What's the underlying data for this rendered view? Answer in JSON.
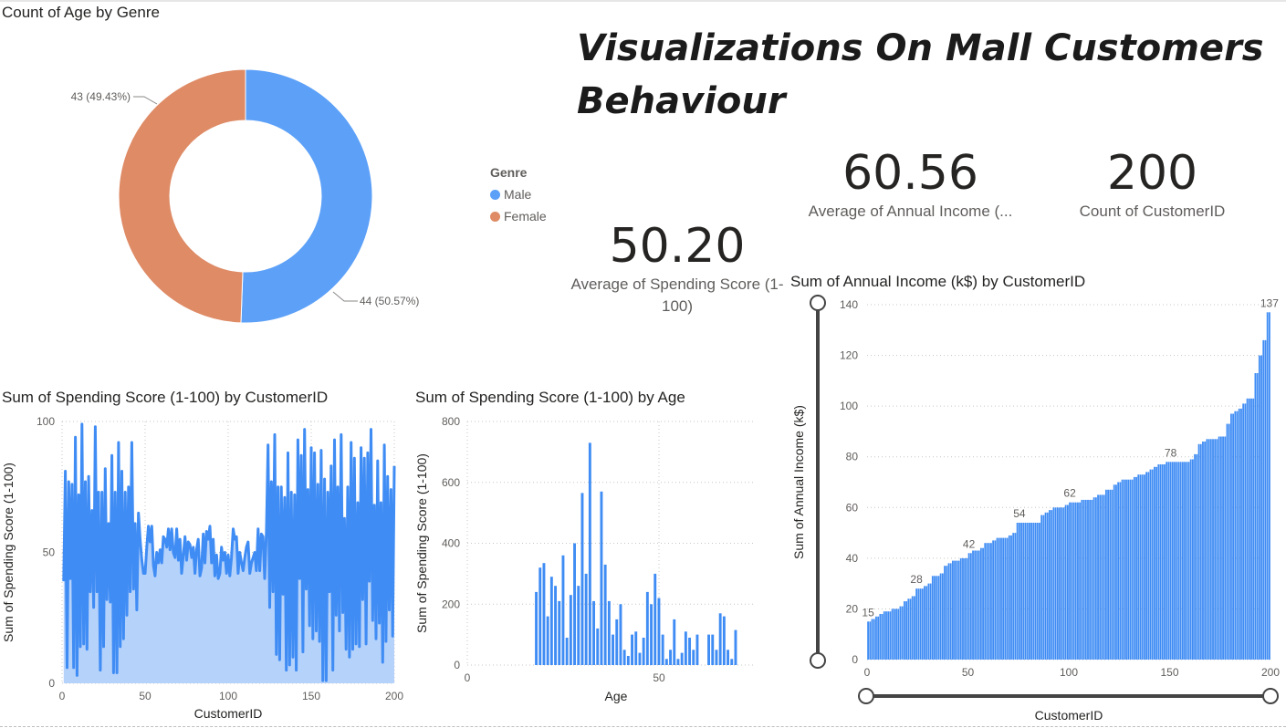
{
  "page_title": "Visualizations On Mall Customers Behaviour",
  "colors": {
    "male": "#5ca0f8",
    "female": "#de8b66",
    "bar": "#3f8cf4",
    "area": "#b5d2fb",
    "line": "#3f8cf4"
  },
  "cards": [
    {
      "value": "60.56",
      "label": "Average of Annual Income (..."
    },
    {
      "value": "200",
      "label": "Count of CustomerID"
    },
    {
      "value": "50.20",
      "label": "Average of Spending Score (1-100)"
    }
  ],
  "donut": {
    "title": "Count of Age by Genre",
    "legend_title": "Genre",
    "slices": [
      {
        "name": "Male",
        "value": 44,
        "label": "44 (50.57%)"
      },
      {
        "name": "Female",
        "value": 43,
        "label": "43 (49.43%)"
      }
    ]
  },
  "chart_data": [
    {
      "type": "area",
      "title": "Sum of Spending Score (1-100) by CustomerID",
      "xlabel": "CustomerID",
      "ylabel": "Sum of Spending Score (1-100)",
      "xlim": [
        0,
        200
      ],
      "ylim": [
        0,
        100
      ],
      "xticks": [
        "0",
        "50",
        "100",
        "150",
        "200"
      ],
      "yticks": [
        "0",
        "50",
        "100"
      ],
      "x": [
        1,
        2,
        3,
        4,
        5,
        6,
        7,
        8,
        9,
        10,
        11,
        12,
        13,
        14,
        15,
        16,
        17,
        18,
        19,
        20,
        21,
        22,
        23,
        24,
        25,
        26,
        27,
        28,
        29,
        30,
        31,
        32,
        33,
        34,
        35,
        36,
        37,
        38,
        39,
        40,
        41,
        42,
        43,
        44,
        45,
        46,
        47,
        48,
        49,
        50,
        51,
        52,
        53,
        54,
        55,
        56,
        57,
        58,
        59,
        60,
        61,
        62,
        63,
        64,
        65,
        66,
        67,
        68,
        69,
        70,
        71,
        72,
        73,
        74,
        75,
        76,
        77,
        78,
        79,
        80,
        81,
        82,
        83,
        84,
        85,
        86,
        87,
        88,
        89,
        90,
        91,
        92,
        93,
        94,
        95,
        96,
        97,
        98,
        99,
        100,
        101,
        102,
        103,
        104,
        105,
        106,
        107,
        108,
        109,
        110,
        111,
        112,
        113,
        114,
        115,
        116,
        117,
        118,
        119,
        120,
        121,
        122,
        123,
        124,
        125,
        126,
        127,
        128,
        129,
        130,
        131,
        132,
        133,
        134,
        135,
        136,
        137,
        138,
        139,
        140,
        141,
        142,
        143,
        144,
        145,
        146,
        147,
        148,
        149,
        150,
        151,
        152,
        153,
        154,
        155,
        156,
        157,
        158,
        159,
        160,
        161,
        162,
        163,
        164,
        165,
        166,
        167,
        168,
        169,
        170,
        171,
        172,
        173,
        174,
        175,
        176,
        177,
        178,
        179,
        180,
        181,
        182,
        183,
        184,
        185,
        186,
        187,
        188,
        189,
        190,
        191,
        192,
        193,
        194,
        195,
        196,
        197,
        198,
        199,
        200
      ],
      "values": [
        39,
        81,
        6,
        77,
        40,
        76,
        6,
        94,
        3,
        72,
        14,
        99,
        15,
        77,
        13,
        79,
        35,
        66,
        29,
        98,
        35,
        73,
        5,
        73,
        14,
        82,
        32,
        61,
        31,
        87,
        4,
        73,
        4,
        92,
        14,
        81,
        17,
        73,
        26,
        75,
        35,
        92,
        36,
        61,
        28,
        65,
        55,
        47,
        42,
        42,
        52,
        60,
        54,
        60,
        45,
        41,
        50,
        46,
        51,
        46,
        56,
        55,
        52,
        59,
        51,
        59,
        50,
        48,
        59,
        47,
        55,
        42,
        49,
        56,
        47,
        54,
        53,
        48,
        52,
        42,
        51,
        55,
        41,
        44,
        57,
        46,
        58,
        55,
        60,
        46,
        55,
        41,
        49,
        40,
        42,
        52,
        47,
        50,
        42,
        49,
        41,
        48,
        59,
        55,
        56,
        42,
        50,
        46,
        43,
        48,
        52,
        54,
        42,
        46,
        48,
        50,
        43,
        59,
        43,
        57,
        56,
        40,
        58,
        91,
        29,
        77,
        35,
        95,
        11,
        75,
        9,
        75,
        34,
        71,
        5,
        88,
        7,
        73,
        10,
        72,
        5,
        93,
        40,
        87,
        12,
        97,
        36,
        74,
        22,
        90,
        17,
        88,
        20,
        76,
        16,
        89,
        1,
        78,
        1,
        73,
        35,
        83,
        5,
        93,
        26,
        75,
        20,
        95,
        27,
        63,
        13,
        75,
        10,
        92,
        13,
        86,
        15,
        69,
        14,
        90,
        32,
        86,
        15,
        88,
        39,
        97,
        24,
        68,
        17,
        85,
        23,
        69,
        8,
        91,
        16,
        79,
        28,
        74,
        18,
        83
      ]
    },
    {
      "type": "bar",
      "title": "Sum of Spending Score (1-100) by Age",
      "xlabel": "Age",
      "ylabel": "Sum of Spending Score (1-100)",
      "xlim": [
        0,
        75
      ],
      "ylim": [
        0,
        800
      ],
      "xticks": [
        "0",
        "50"
      ],
      "yticks": [
        "0",
        "200",
        "400",
        "600",
        "800"
      ],
      "x": [
        18,
        19,
        20,
        21,
        22,
        23,
        24,
        25,
        26,
        27,
        28,
        29,
        30,
        31,
        32,
        33,
        34,
        35,
        36,
        37,
        38,
        39,
        40,
        41,
        42,
        43,
        44,
        45,
        46,
        47,
        48,
        49,
        50,
        51,
        52,
        53,
        54,
        55,
        56,
        57,
        58,
        59,
        60,
        63,
        64,
        65,
        66,
        67,
        68,
        69,
        70
      ],
      "values": [
        240,
        320,
        335,
        160,
        290,
        260,
        210,
        360,
        90,
        230,
        400,
        260,
        565,
        300,
        730,
        210,
        120,
        570,
        330,
        210,
        100,
        150,
        200,
        50,
        30,
        100,
        110,
        40,
        90,
        240,
        200,
        300,
        220,
        100,
        20,
        50,
        150,
        20,
        40,
        110,
        90,
        50,
        100,
        100,
        100,
        50,
        170,
        160,
        50,
        20,
        115
      ]
    },
    {
      "type": "bar",
      "title": "Sum of Annual Income (k$) by CustomerID",
      "xlabel": "CustomerID",
      "ylabel": "Sum of Annual Income (k$)",
      "xlim": [
        0,
        200
      ],
      "ylim": [
        0,
        140
      ],
      "xticks": [
        "0",
        "50",
        "100",
        "150",
        "200"
      ],
      "yticks": [
        "0",
        "20",
        "40",
        "60",
        "80",
        "100",
        "120",
        "140"
      ],
      "value_labels": [
        {
          "x": 1,
          "label": "15"
        },
        {
          "x": 25,
          "label": "28"
        },
        {
          "x": 51,
          "label": "42"
        },
        {
          "x": 76,
          "label": "54"
        },
        {
          "x": 101,
          "label": "62"
        },
        {
          "x": 151,
          "label": "78"
        },
        {
          "x": 200,
          "label": "137"
        }
      ],
      "values": [
        15,
        15,
        16,
        16,
        17,
        17,
        18,
        18,
        19,
        19,
        19,
        19,
        20,
        20,
        20,
        20,
        21,
        21,
        23,
        23,
        24,
        24,
        25,
        25,
        28,
        28,
        28,
        28,
        29,
        29,
        30,
        30,
        33,
        33,
        33,
        33,
        34,
        34,
        37,
        37,
        38,
        38,
        39,
        39,
        39,
        39,
        40,
        40,
        40,
        40,
        42,
        42,
        43,
        43,
        43,
        43,
        44,
        44,
        46,
        46,
        46,
        46,
        47,
        47,
        48,
        48,
        48,
        48,
        48,
        48,
        49,
        49,
        50,
        50,
        54,
        54,
        54,
        54,
        54,
        54,
        54,
        54,
        54,
        54,
        54,
        54,
        57,
        57,
        58,
        58,
        59,
        59,
        60,
        60,
        60,
        60,
        60,
        60,
        61,
        61,
        62,
        62,
        62,
        62,
        62,
        62,
        63,
        63,
        63,
        63,
        63,
        63,
        64,
        64,
        65,
        65,
        65,
        65,
        67,
        67,
        67,
        67,
        69,
        69,
        70,
        70,
        71,
        71,
        71,
        71,
        71,
        71,
        72,
        72,
        73,
        73,
        73,
        73,
        74,
        74,
        75,
        75,
        76,
        76,
        77,
        77,
        77,
        77,
        78,
        78,
        78,
        78,
        78,
        78,
        78,
        78,
        78,
        78,
        78,
        78,
        79,
        79,
        81,
        81,
        85,
        85,
        86,
        86,
        87,
        87,
        87,
        87,
        87,
        87,
        88,
        88,
        88,
        88,
        93,
        93,
        97,
        97,
        98,
        98,
        99,
        99,
        101,
        101,
        103,
        103,
        103,
        103,
        113,
        113,
        120,
        120,
        126,
        126,
        137,
        137
      ]
    }
  ]
}
